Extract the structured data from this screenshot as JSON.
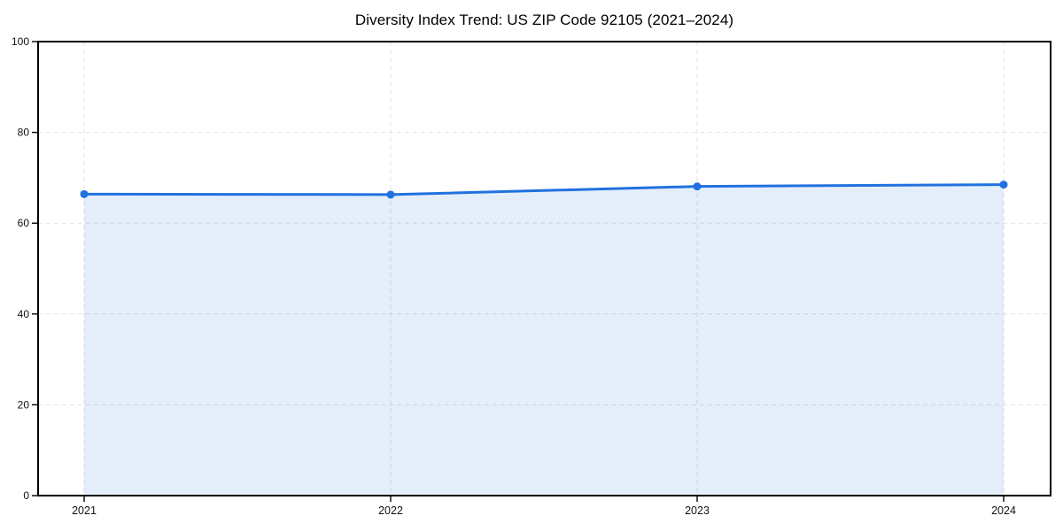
{
  "chart_data": {
    "type": "area",
    "title": "Diversity Index Trend: US ZIP Code 92105 (2021–2024)",
    "categories": [
      "2021",
      "2022",
      "2023",
      "2024"
    ],
    "series": [
      {
        "name": "Diversity Index",
        "values": [
          66.4,
          66.3,
          68.1,
          68.5
        ]
      }
    ],
    "xlabel": "",
    "ylabel": "",
    "ylim": [
      0,
      100
    ],
    "yticks": [
      0,
      20,
      40,
      60,
      80,
      100
    ],
    "grid": "dashed both axes",
    "legend": "none",
    "style": {
      "line_color": "#2171e0",
      "marker_color": "#2171e0",
      "fill_color": "#2171e0",
      "fill_opacity": 0.12,
      "grid_color": "#e2e2e2",
      "axis_color": "#000000",
      "tick_label_color": "#111111",
      "background_color": "#ffffff"
    }
  }
}
